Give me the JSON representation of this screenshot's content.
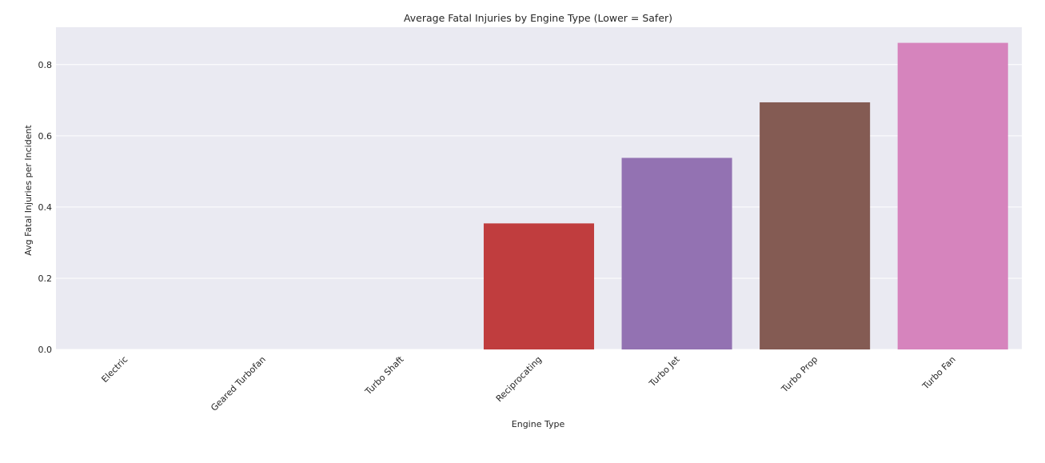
{
  "chart_data": {
    "type": "bar",
    "title": "Average Fatal Injuries by Engine Type (Lower = Safer)",
    "xlabel": "Engine Type",
    "ylabel": "Avg Fatal Injuries per Incident",
    "categories": [
      "Electric",
      "Geared Turbofan",
      "Turbo Shaft",
      "Reciprocating",
      "Turbo Jet",
      "Turbo Prop",
      "Turbo Fan"
    ],
    "values": [
      0.0,
      0.0,
      0.0,
      0.354,
      0.538,
      0.694,
      0.861
    ],
    "colors": [
      "#1f77b4",
      "#ff7f0e",
      "#2ca02c",
      "#c03d3e",
      "#9372b2",
      "#845b53",
      "#d684bd"
    ],
    "ylim": [
      0,
      0.905
    ],
    "yticks": [
      0.0,
      0.2,
      0.4,
      0.6,
      0.8
    ],
    "ytick_labels": [
      "0.0",
      "0.2",
      "0.4",
      "0.6",
      "0.8"
    ],
    "grid": true,
    "background": "#eaeaf2",
    "legend": "none"
  }
}
